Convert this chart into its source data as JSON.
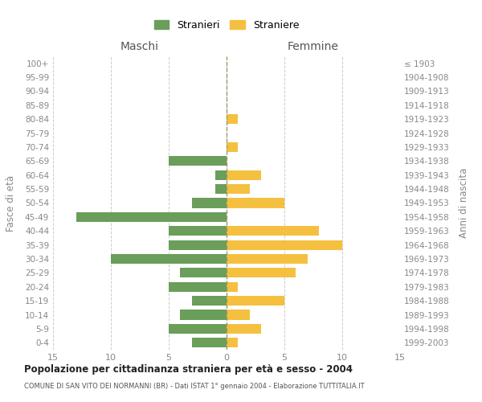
{
  "age_groups": [
    "0-4",
    "5-9",
    "10-14",
    "15-19",
    "20-24",
    "25-29",
    "30-34",
    "35-39",
    "40-44",
    "45-49",
    "50-54",
    "55-59",
    "60-64",
    "65-69",
    "70-74",
    "75-79",
    "80-84",
    "85-89",
    "90-94",
    "95-99",
    "100+"
  ],
  "birth_years": [
    "1999-2003",
    "1994-1998",
    "1989-1993",
    "1984-1988",
    "1979-1983",
    "1974-1978",
    "1969-1973",
    "1964-1968",
    "1959-1963",
    "1954-1958",
    "1949-1953",
    "1944-1948",
    "1939-1943",
    "1934-1938",
    "1929-1933",
    "1924-1928",
    "1919-1923",
    "1914-1918",
    "1909-1913",
    "1904-1908",
    "≤ 1903"
  ],
  "males": [
    3,
    5,
    4,
    3,
    5,
    4,
    10,
    5,
    5,
    13,
    3,
    1,
    1,
    5,
    0,
    0,
    0,
    0,
    0,
    0,
    0
  ],
  "females": [
    1,
    3,
    2,
    5,
    1,
    6,
    7,
    10,
    8,
    0,
    5,
    2,
    3,
    0,
    1,
    0,
    1,
    0,
    0,
    0,
    0
  ],
  "male_color": "#6a9e5a",
  "female_color": "#f5c040",
  "background_color": "#ffffff",
  "grid_color": "#cccccc",
  "title": "Popolazione per cittadinanza straniera per età e sesso - 2004",
  "subtitle": "COMUNE DI SAN VITO DEI NORMANNI (BR) - Dati ISTAT 1° gennaio 2004 - Elaborazione TUTTITALIA.IT",
  "ylabel_left": "Fasce di età",
  "ylabel_right": "Anni di nascita",
  "xlabel_left": "Maschi",
  "xlabel_right": "Femmine",
  "legend_male": "Stranieri",
  "legend_female": "Straniere",
  "xlim": 15,
  "bar_height": 0.7
}
